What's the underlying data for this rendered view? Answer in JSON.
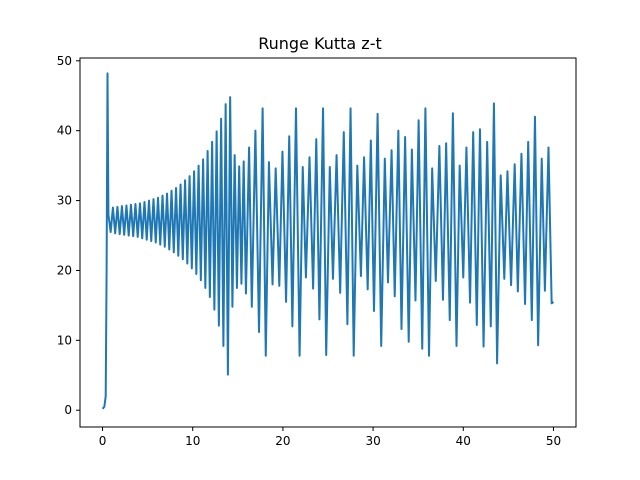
{
  "chart_data": {
    "type": "line",
    "title": "Runge Kutta z-t",
    "xlabel": "",
    "ylabel": "",
    "xlim": [
      -2.5,
      52.5
    ],
    "ylim": [
      -2.4,
      50.4
    ],
    "xticks": [
      0,
      10,
      20,
      30,
      40,
      50
    ],
    "yticks": [
      0,
      10,
      20,
      30,
      40,
      50
    ],
    "grid": false,
    "legend": "none",
    "color": "#1f77b4",
    "series": [
      {
        "x": [
          0.0,
          0.2,
          0.35,
          0.45,
          0.55,
          0.65,
          0.9,
          1.15,
          1.4,
          1.65,
          1.9,
          2.15,
          2.4,
          2.65,
          2.9,
          3.15,
          3.4,
          3.65,
          3.9,
          4.15,
          4.4,
          4.65,
          4.9,
          5.15,
          5.4,
          5.65,
          5.9,
          6.15,
          6.4,
          6.65,
          6.9,
          7.15,
          7.4,
          7.65,
          7.9,
          8.15,
          8.4,
          8.65,
          8.9,
          9.15,
          9.4,
          9.65,
          9.9,
          10.15,
          10.4,
          10.65,
          10.9,
          11.15,
          11.4,
          11.65,
          11.9,
          12.15,
          12.4,
          12.65,
          12.9,
          13.15,
          13.4,
          13.65,
          13.9,
          14.15,
          14.4,
          14.65,
          14.9,
          15.15,
          15.4,
          15.65,
          15.9,
          16.25,
          16.55,
          16.95,
          17.35,
          17.75,
          18.1,
          18.45,
          18.85,
          19.2,
          19.6,
          19.95,
          20.35,
          20.7,
          21.05,
          21.45,
          21.85,
          22.2,
          22.55,
          22.95,
          23.35,
          23.7,
          24.05,
          24.45,
          24.8,
          25.2,
          25.55,
          25.95,
          26.35,
          26.75,
          27.15,
          27.5,
          27.85,
          28.25,
          28.65,
          29.0,
          29.4,
          29.75,
          30.1,
          30.5,
          30.9,
          31.3,
          31.65,
          32.05,
          32.4,
          32.8,
          33.15,
          33.55,
          33.95,
          34.3,
          34.7,
          35.05,
          35.45,
          35.8,
          36.2,
          36.55,
          36.95,
          37.35,
          37.75,
          38.1,
          38.5,
          38.85,
          39.25,
          39.6,
          40.0,
          40.35,
          40.75,
          41.1,
          41.5,
          41.85,
          42.25,
          42.65,
          43.05,
          43.4,
          43.75,
          44.15,
          44.55,
          44.9,
          45.3,
          45.7,
          46.05,
          46.45,
          46.85,
          47.2,
          47.6,
          47.95,
          48.3,
          48.7,
          49.05,
          49.45,
          49.8,
          50.0
        ],
        "y": [
          0.2,
          0.5,
          2.0,
          20.0,
          48.2,
          28.0,
          25.5,
          29.0,
          25.3,
          29.1,
          25.2,
          29.2,
          25.1,
          29.3,
          25.0,
          29.4,
          24.9,
          29.5,
          24.8,
          29.6,
          24.6,
          29.8,
          24.4,
          30.0,
          24.2,
          30.2,
          24.0,
          30.4,
          23.7,
          30.7,
          23.4,
          31.0,
          23.0,
          31.4,
          22.6,
          31.8,
          22.1,
          32.3,
          21.6,
          32.9,
          21.0,
          33.5,
          20.3,
          34.2,
          19.5,
          35.0,
          18.6,
          35.9,
          17.5,
          37.1,
          16.2,
          38.4,
          14.4,
          39.9,
          12.1,
          41.7,
          9.2,
          43.8,
          5.1,
          44.8,
          14.8,
          36.5,
          17.5,
          34.9,
          18.1,
          35.6,
          16.7,
          37.6,
          14.8,
          40.0,
          11.2,
          43.2,
          7.8,
          35.5,
          18.0,
          34.6,
          17.8,
          37.0,
          15.5,
          39.2,
          12.0,
          43.2,
          7.8,
          34.8,
          19.0,
          36.2,
          17.4,
          38.8,
          13.0,
          43.2,
          7.9,
          34.8,
          18.8,
          36.5,
          16.8,
          39.8,
          12.3,
          43.2,
          7.8,
          35.0,
          19.2,
          36.2,
          17.3,
          38.6,
          14.2,
          42.4,
          9.2,
          36.0,
          18.3,
          37.2,
          16.3,
          40.0,
          11.6,
          39.1,
          9.8,
          37.3,
          15.7,
          41.5,
          8.8,
          43.2,
          7.8,
          34.6,
          18.5,
          37.8,
          15.8,
          38.2,
          12.9,
          42.5,
          9.2,
          35.0,
          19.0,
          37.6,
          15.4,
          39.8,
          12.2,
          40.2,
          9.1,
          38.4,
          12.0,
          43.9,
          6.7,
          33.6,
          18.8,
          34.2,
          17.9,
          35.2,
          17.0,
          36.7,
          15.2,
          38.4,
          12.9,
          42.0,
          9.3,
          36.0,
          17.1,
          37.6,
          15.3,
          15.5
        ]
      }
    ]
  }
}
